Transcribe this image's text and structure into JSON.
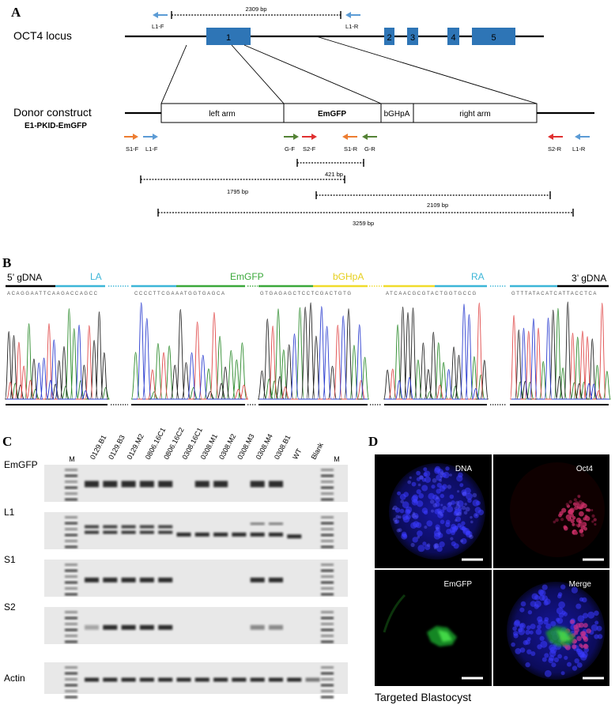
{
  "panelA": {
    "letter": "A",
    "locus_label": "OCT4 locus",
    "exons": [
      "1",
      "2",
      "3",
      "4",
      "5"
    ],
    "top_amplicon": "2309 bp",
    "top_primers": {
      "left": "L1-F",
      "right": "L1-R"
    },
    "donor_label": "Donor construct",
    "donor_sub": "E1-PKID-EmGFP",
    "segments": [
      "left arm",
      "EmGFP",
      "bGHpA",
      "right arm"
    ],
    "primers": [
      "S1-F",
      "L1-F",
      "G-F",
      "S2-F",
      "S1-R",
      "G-R",
      "S2-R",
      "L1-R"
    ],
    "amplicons": [
      "421 bp",
      "1795 bp",
      "2109 bp",
      "3259 bp"
    ],
    "colors": {
      "exon": "#2e75b6",
      "blue_primer": "#5b9bd5",
      "orange_primer": "#ed7d31",
      "green_primer": "#548235",
      "red_primer": "#e03030"
    }
  },
  "panelB": {
    "letter": "B",
    "labels": [
      "5’ gDNA",
      "LA",
      "EmGFP",
      "bGHpA",
      "RA",
      "3’ gDNA"
    ],
    "colors": {
      "la": "#3cb6d8",
      "emgfp": "#3aa83a",
      "bghpa": "#f0dc2a",
      "ra": "#3cb6d8",
      "gdna": "#000000"
    },
    "sequences": [
      "ACAGGAATTCAAGACCAGCC",
      "CCCCTTCGAAATGGTGAGCA",
      "GTGAGAGCTCCTCGACTGTG",
      "ATCAACGCGTACTGGTGCCG",
      "GTTTATACATCATTACCTCA"
    ]
  },
  "panelC": {
    "letter": "C",
    "marker": "M",
    "lanes": [
      "0129.B1",
      "0129.B3",
      "0129.M2",
      "0806.16C1",
      "0806.16C2",
      "0308.16C1",
      "0308.M1",
      "0308.M2",
      "0308.M3",
      "0308.M4",
      "0308.B1",
      "WT",
      "Blank"
    ],
    "rows": [
      "EmGFP",
      "L1",
      "S1",
      "S2",
      "Actin"
    ]
  },
  "panelD": {
    "letter": "D",
    "channels": [
      "DNA",
      "Oct4",
      "EmGFP",
      "Merge"
    ],
    "caption": "Targeted Blastocyst"
  }
}
